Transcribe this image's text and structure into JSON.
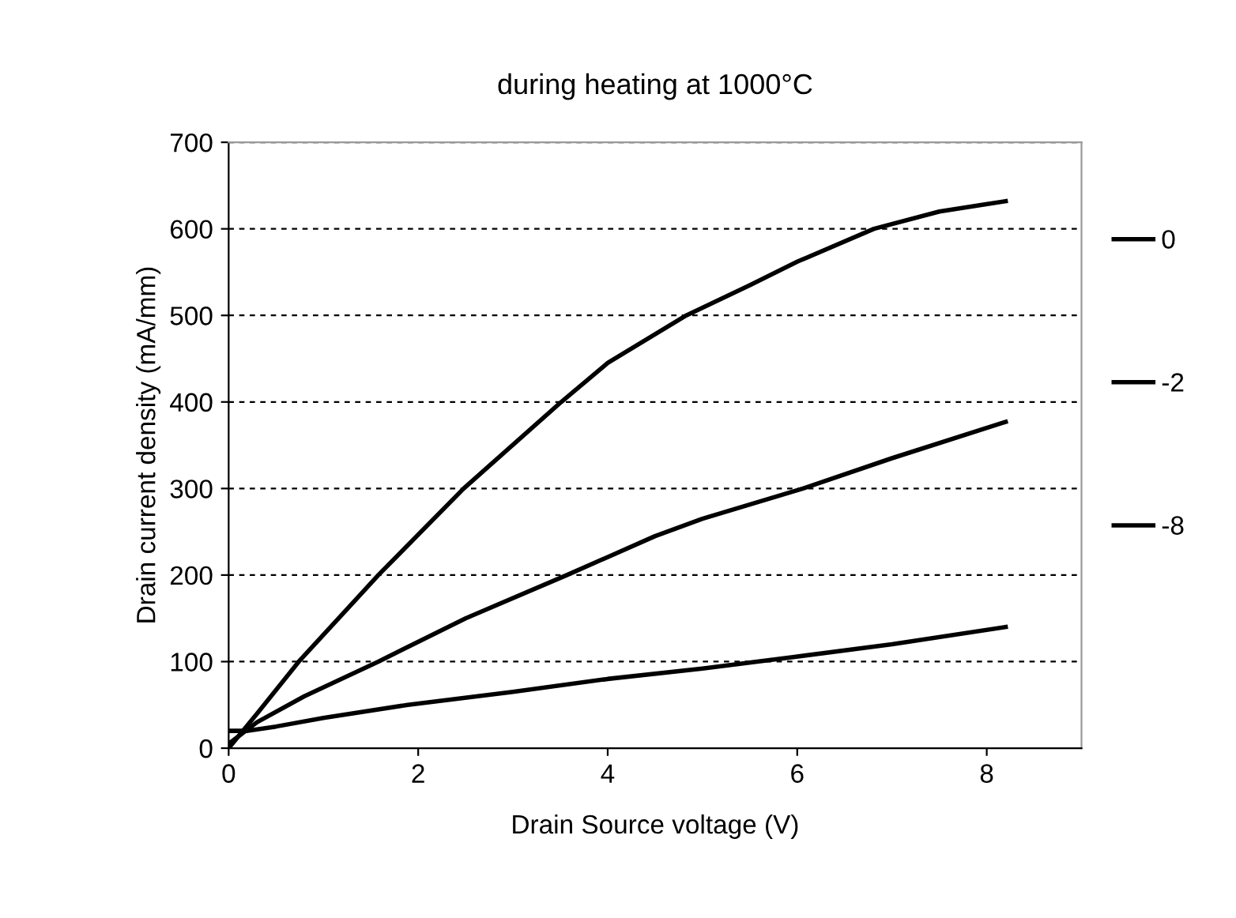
{
  "chart_data": {
    "type": "line",
    "title": "during heating at 1000°C",
    "xlabel": "Drain Source voltage (V)",
    "ylabel": "Drain current density (mA/mm)",
    "xlim": [
      0,
      9
    ],
    "xticks": [
      0,
      2,
      4,
      6,
      8
    ],
    "ylim": [
      0,
      700
    ],
    "yticks": [
      0,
      100,
      200,
      300,
      400,
      500,
      600,
      700
    ],
    "grid": "y",
    "legend": "right",
    "marker": "none",
    "line_style": "solid",
    "series": [
      {
        "name": "0",
        "color": "#000000",
        "x": [
          0,
          0.3,
          0.74,
          1.58,
          2.48,
          3.51,
          4.0,
          4.83,
          5.5,
          6.0,
          6.81,
          7.5,
          8.2
        ],
        "values": [
          0,
          40,
          100,
          200,
          300,
          400,
          445,
          500,
          535,
          562,
          600,
          620,
          632
        ]
      },
      {
        "name": "-2",
        "color": "#000000",
        "x": [
          0,
          0.3,
          0.8,
          1.58,
          2.5,
          3.57,
          4.5,
          5.0,
          6.06,
          7.0,
          8.2
        ],
        "values": [
          5,
          30,
          60,
          100,
          150,
          200,
          245,
          265,
          300,
          335,
          377
        ]
      },
      {
        "name": "-8",
        "color": "#000000",
        "x": [
          0,
          0.2,
          0.5,
          1.0,
          1.89,
          3.0,
          4.0,
          5.0,
          5.94,
          7.0,
          8.2
        ],
        "values": [
          20,
          20,
          25,
          35,
          50,
          65,
          80,
          92,
          105,
          120,
          140
        ]
      }
    ]
  }
}
